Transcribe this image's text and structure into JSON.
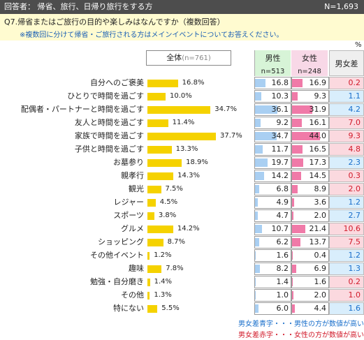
{
  "header": {
    "respondents": "回答者： 帰省、旅行、日帰り旅行をする方",
    "n_total": "N=1,693"
  },
  "question": {
    "text": "Q7.帰省またはご旅行の目的や楽しみはなんですか（複数回答）",
    "note": "※複数回に分けて帰省・ご旅行される方はメインイベントについてお答えください。"
  },
  "unit": "%",
  "columns": {
    "total_label": "全体",
    "total_n": "(n=761)",
    "male_label": "男性",
    "male_n": "n=513",
    "female_label": "女性",
    "female_n": "n=248",
    "diff_label": "男女差"
  },
  "legend": {
    "blue": "男女差青字・・・男性の方が数値が高い",
    "red": "男女差赤字・・・女性の方が数値が高い"
  },
  "colors": {
    "total_bar": "#f5d200",
    "male_bar": "#a9cff2",
    "female_bar": "#f07aa8",
    "male_higher": "#1a6fcb",
    "female_higher": "#d11a2a"
  },
  "chart_data": {
    "type": "bar",
    "categories": [
      "自分へのご褒美",
      "ひとりで時間を過ごす",
      "配偶者・パートナーと時間を過ごす",
      "友人と時間を過ごす",
      "家族で時間を過ごす",
      "子供と時間を過ごす",
      "お墓参り",
      "親孝行",
      "観光",
      "レジャー",
      "スポーツ",
      "グルメ",
      "ショッピング",
      "その他イベント",
      "趣味",
      "勉強・自分磨き",
      "その他",
      "特にない"
    ],
    "series": [
      {
        "name": "全体",
        "values": [
          16.8,
          10.0,
          34.7,
          11.4,
          37.7,
          13.3,
          18.9,
          14.3,
          7.5,
          4.5,
          3.8,
          14.2,
          8.7,
          1.2,
          7.8,
          1.4,
          1.3,
          5.5
        ]
      },
      {
        "name": "男性",
        "values": [
          16.8,
          10.3,
          36.1,
          9.2,
          34.7,
          11.7,
          19.7,
          14.2,
          6.8,
          4.9,
          4.7,
          10.7,
          6.2,
          1.6,
          8.2,
          1.4,
          1.0,
          6.0
        ]
      },
      {
        "name": "女性",
        "values": [
          16.9,
          9.3,
          31.9,
          16.1,
          44.0,
          16.5,
          17.3,
          14.5,
          8.9,
          3.6,
          2.0,
          21.4,
          13.7,
          0.4,
          6.9,
          1.6,
          2.0,
          4.4
        ]
      },
      {
        "name": "男女差",
        "values": [
          0.2,
          1.1,
          4.2,
          7.0,
          9.3,
          4.8,
          2.3,
          0.3,
          2.0,
          1.2,
          2.7,
          10.6,
          7.5,
          1.2,
          1.3,
          0.2,
          1.0,
          1.6
        ]
      }
    ],
    "diff_higher": [
      "female",
      "male",
      "male",
      "female",
      "female",
      "female",
      "male",
      "female",
      "female",
      "male",
      "male",
      "female",
      "female",
      "male",
      "male",
      "female",
      "female",
      "male"
    ],
    "value_suffix": "%"
  }
}
